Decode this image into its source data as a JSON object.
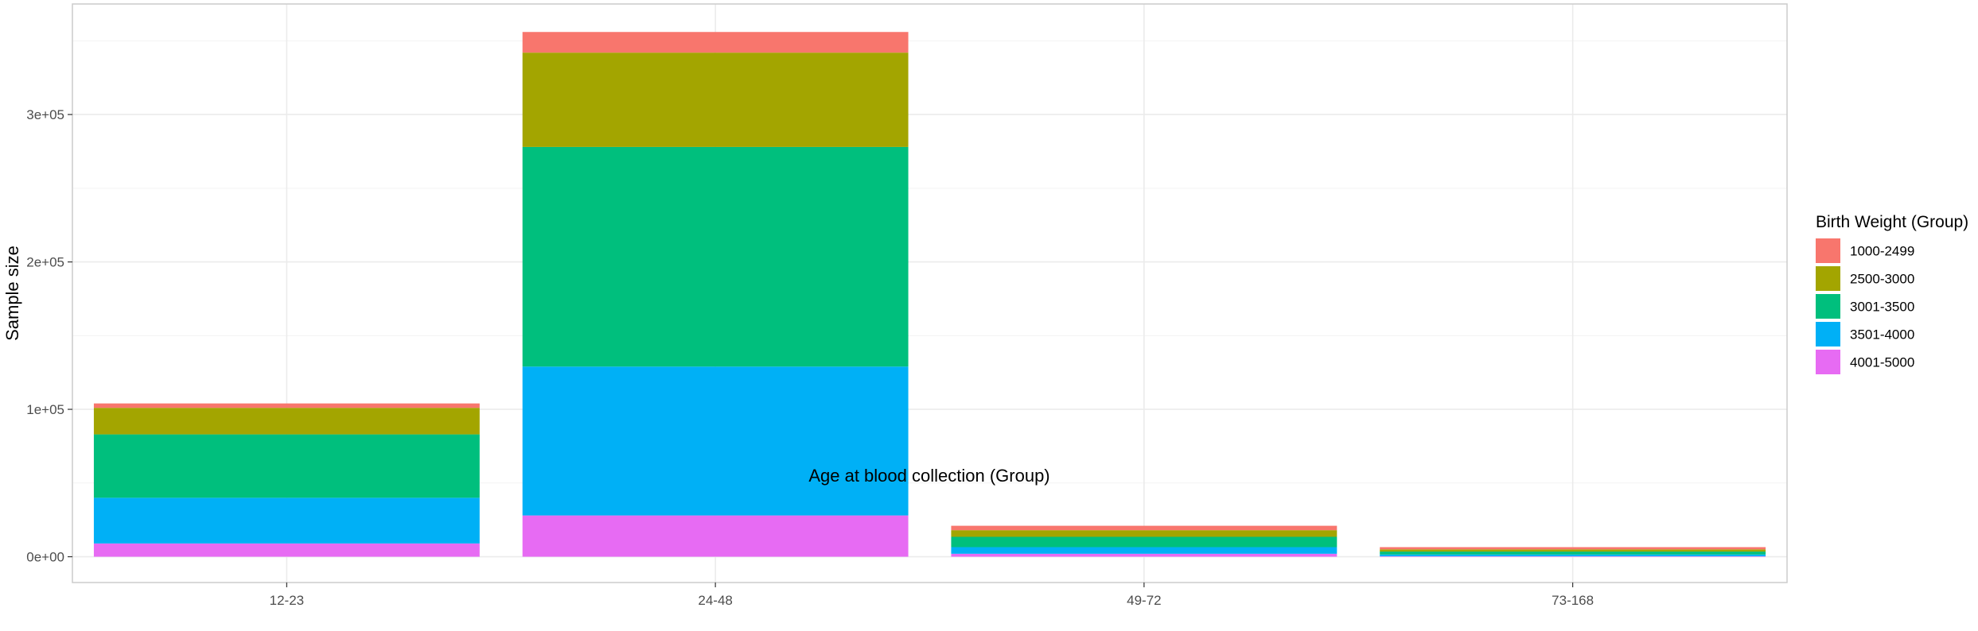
{
  "chart_data": {
    "type": "bar",
    "stacked": true,
    "categories": [
      "12-23",
      "24-48",
      "49-72",
      "73-168"
    ],
    "xlabel": "Age at blood collection (Group)",
    "ylabel": "Sample size",
    "ylim": [
      -17500,
      375000
    ],
    "yticks": [
      0,
      100000,
      200000,
      300000
    ],
    "ytick_labels": [
      "0e+00",
      "1e+05",
      "2e+05",
      "3e+05"
    ],
    "grid": true,
    "legend": {
      "title": "Birth Weight (Group)",
      "position": "right"
    },
    "series": [
      {
        "name": "1000-2499",
        "color": "#F8766D",
        "values": [
          3000,
          14000,
          3000,
          1500
        ]
      },
      {
        "name": "2500-3000",
        "color": "#A3A500",
        "values": [
          18000,
          64000,
          4500,
          1500
        ]
      },
      {
        "name": "3001-3500",
        "color": "#00BF7D",
        "values": [
          43000,
          149000,
          7000,
          2000
        ]
      },
      {
        "name": "3501-4000",
        "color": "#00B0F6",
        "values": [
          31000,
          101000,
          4500,
          1200
        ]
      },
      {
        "name": "4001-5000",
        "color": "#E76BF3",
        "values": [
          9000,
          28000,
          2000,
          300
        ]
      }
    ]
  }
}
